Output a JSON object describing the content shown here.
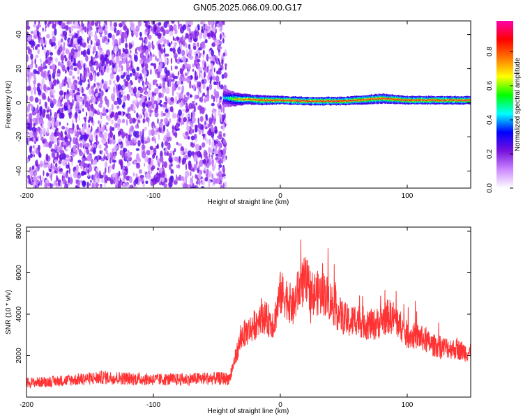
{
  "figure": {
    "title": "GN05.2025.066.09.00.G17"
  },
  "chart_data": [
    {
      "type": "heatmap",
      "xlabel": "Height of straight line (km)",
      "ylabel": "Frequency (Hz)",
      "xlim": [
        -200,
        150
      ],
      "ylim": [
        -50,
        48
      ],
      "xticks": [
        -200,
        -100,
        0,
        100
      ],
      "yticks": [
        -40,
        -20,
        0,
        20,
        40
      ],
      "colorbar": {
        "label": "Normalized spectral amplitude",
        "range": [
          0,
          0.98
        ],
        "ticks": [
          0.0,
          0.2,
          0.4,
          0.6,
          0.8
        ],
        "colors": [
          "#ffffff",
          "#cc88ff",
          "#7711dd",
          "#0000ff",
          "#00ffff",
          "#00ff00",
          "#ffff00",
          "#ff7700",
          "#ff0000",
          "#ff00aa"
        ]
      },
      "noise_region": {
        "x": [
          -200,
          -45
        ],
        "y": [
          -50,
          48
        ]
      },
      "signal_band": [
        {
          "x": -45,
          "freq": 3,
          "width": 6,
          "amplitude": 0.45
        },
        {
          "x": -40,
          "freq": 2.5,
          "width": 5,
          "amplitude": 0.55
        },
        {
          "x": -35,
          "freq": 2,
          "width": 4,
          "amplitude": 0.75
        },
        {
          "x": -25,
          "freq": 2,
          "width": 3,
          "amplitude": 0.85
        },
        {
          "x": -15,
          "freq": 1.5,
          "width": 3,
          "amplitude": 0.9
        },
        {
          "x": 0,
          "freq": 1.5,
          "width": 2.5,
          "amplitude": 0.95
        },
        {
          "x": 20,
          "freq": 1,
          "width": 2.5,
          "amplitude": 0.95
        },
        {
          "x": 50,
          "freq": 1,
          "width": 2.5,
          "amplitude": 0.95
        },
        {
          "x": 80,
          "freq": 2.5,
          "width": 3,
          "amplitude": 0.9
        },
        {
          "x": 100,
          "freq": 1.5,
          "width": 2.5,
          "amplitude": 0.95
        },
        {
          "x": 150,
          "freq": 1.5,
          "width": 2.5,
          "amplitude": 0.95
        }
      ]
    },
    {
      "type": "line",
      "xlabel": "Height of straight line (km)",
      "ylabel": "SNR (10 * v/v)",
      "xlim": [
        -200,
        150
      ],
      "ylim": [
        0,
        8200
      ],
      "xticks": [
        -200,
        -100,
        0,
        100
      ],
      "yticks": [
        2000,
        4000,
        6000,
        8000
      ],
      "series": [
        {
          "color": "#ff3333",
          "x": [
            -200,
            -180,
            -160,
            -140,
            -120,
            -100,
            -80,
            -60,
            -40,
            -35,
            -30,
            -25,
            -20,
            -15,
            -10,
            -5,
            0,
            5,
            10,
            15,
            20,
            25,
            30,
            35,
            40,
            45,
            50,
            55,
            60,
            65,
            70,
            75,
            80,
            85,
            90,
            95,
            100,
            110,
            120,
            130,
            140,
            150
          ],
          "y": [
            700,
            750,
            850,
            950,
            900,
            850,
            850,
            900,
            900,
            2000,
            3000,
            3200,
            3500,
            4000,
            3700,
            3600,
            5000,
            4800,
            4300,
            5300,
            5600,
            5000,
            5000,
            5000,
            4600,
            4100,
            3800,
            3600,
            3800,
            3600,
            3500,
            3500,
            3700,
            3900,
            3800,
            3400,
            3000,
            2900,
            2500,
            2400,
            2300,
            2100
          ]
        }
      ]
    }
  ]
}
